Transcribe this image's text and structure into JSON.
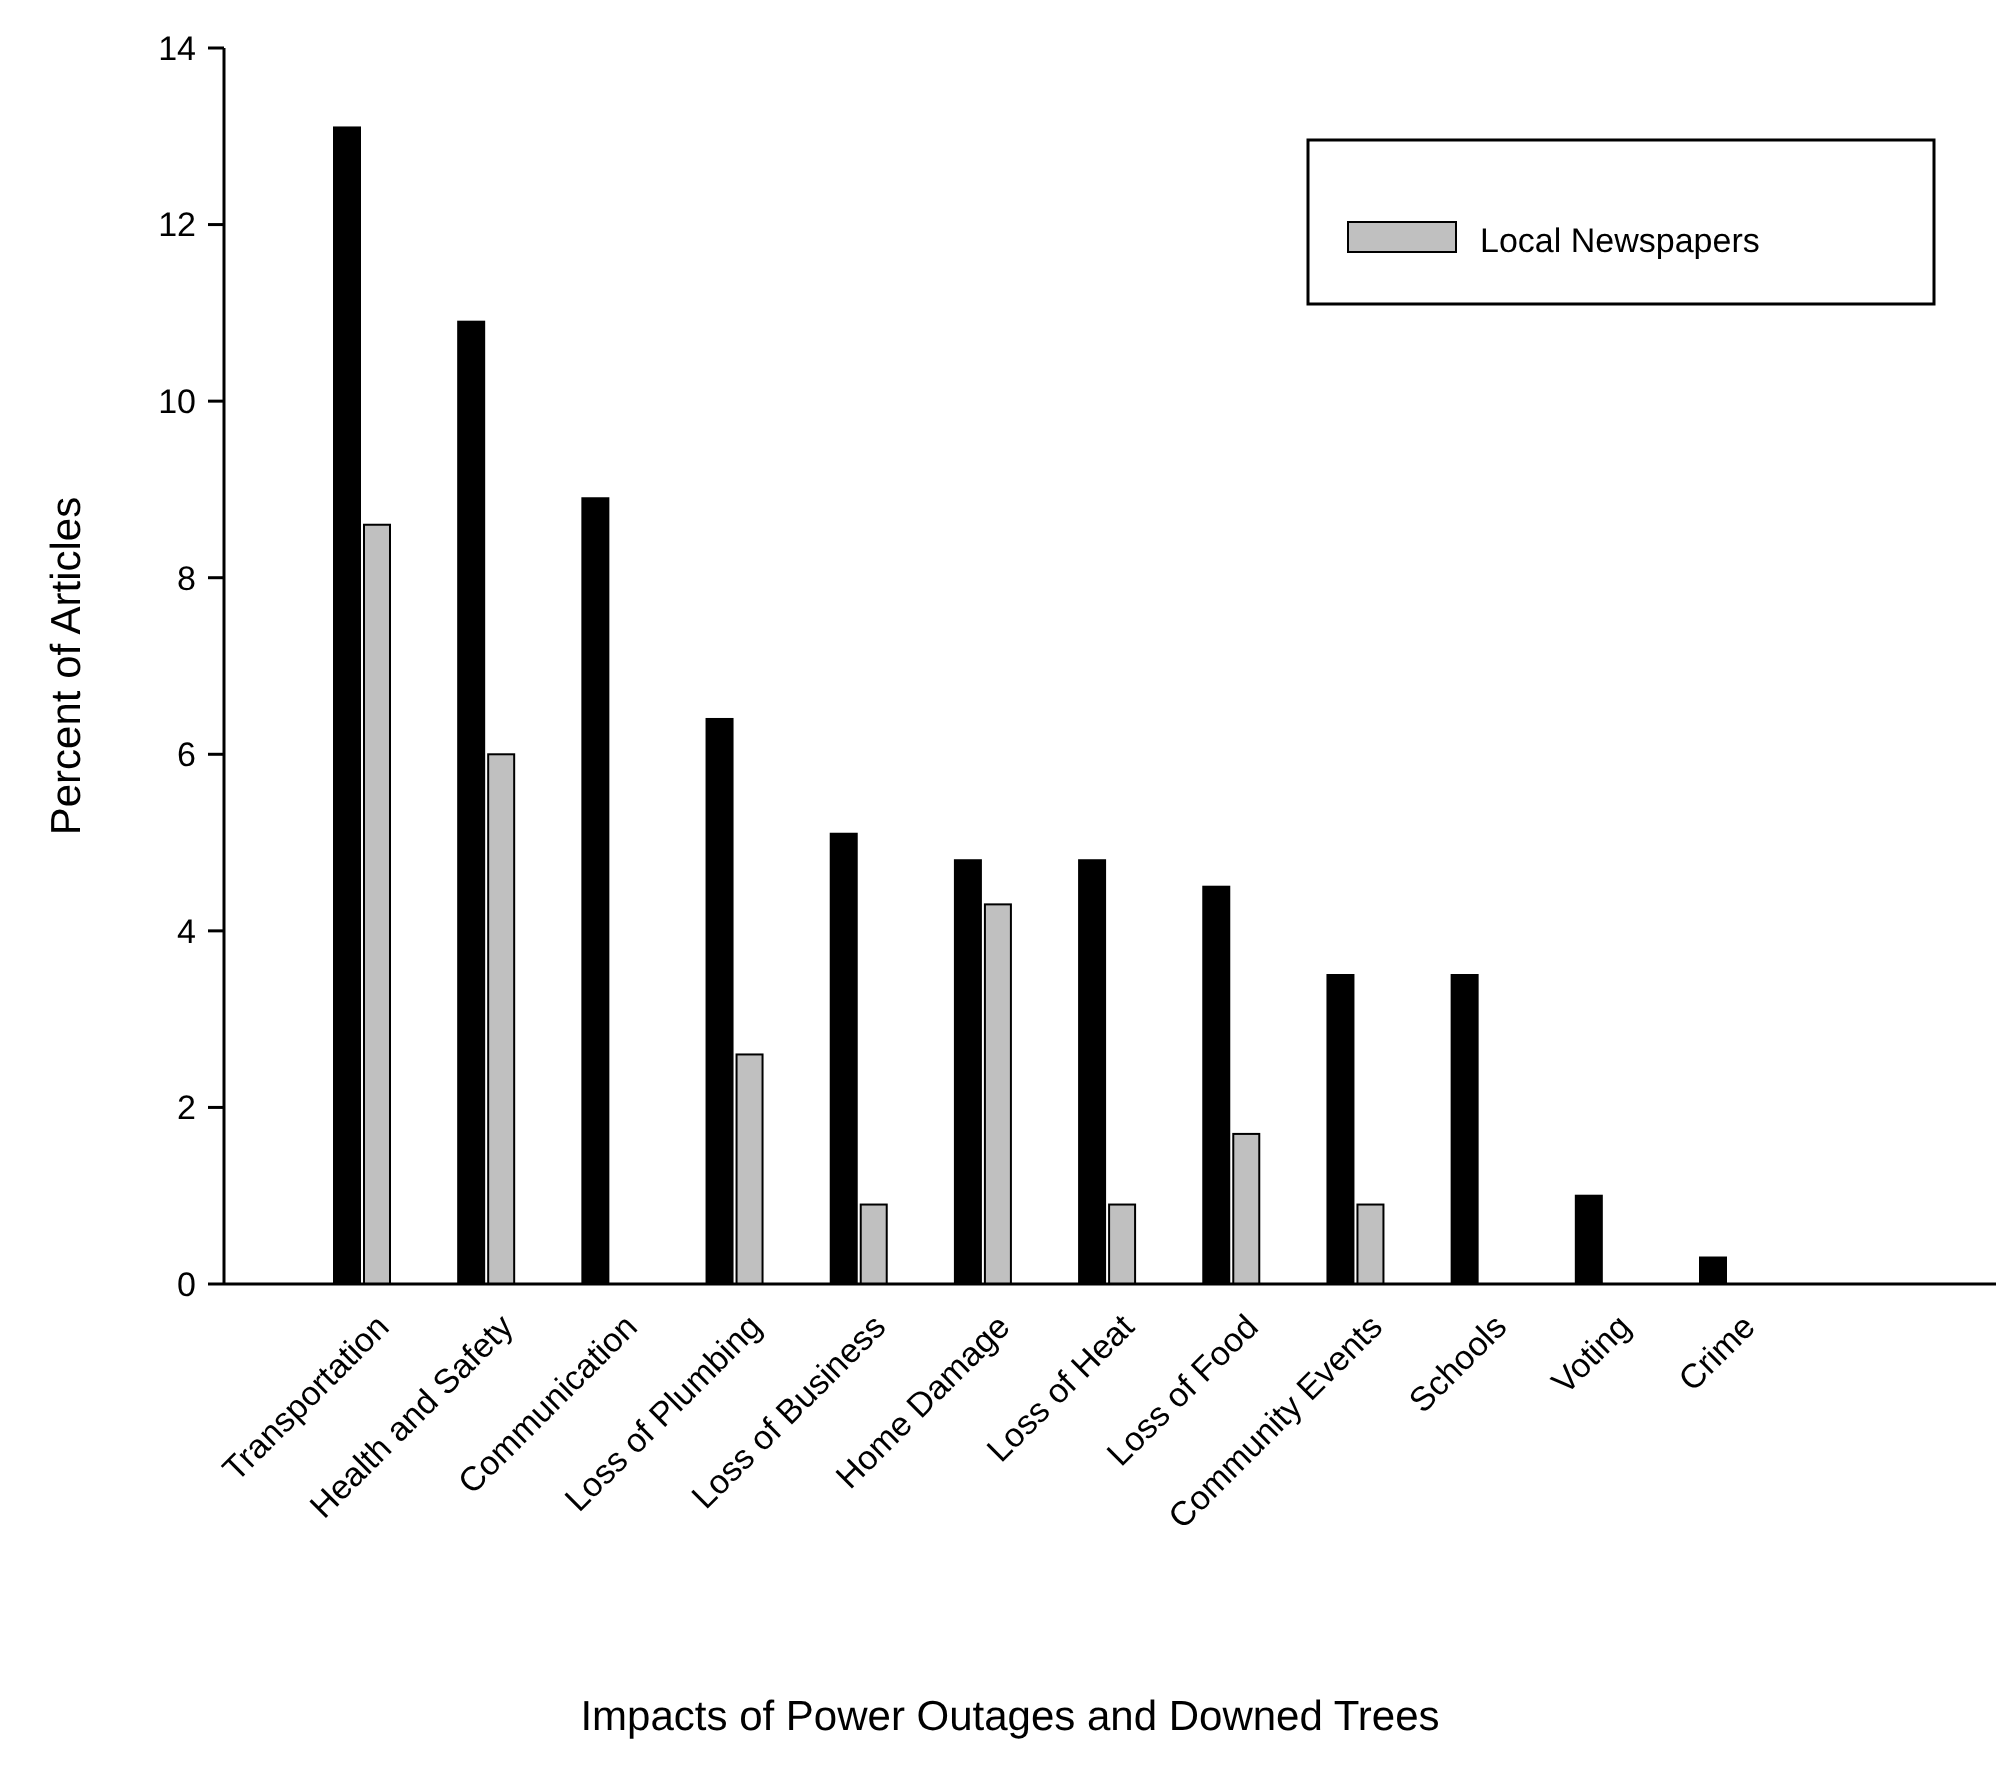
{
  "chart_data": {
    "type": "bar",
    "xlabel": "Impacts of Power Outages and Downed Trees",
    "ylabel": "Percent of Articles",
    "categories": [
      "Transportation",
      "Health and Safety",
      "Communication",
      "Loss of Plumbing",
      "Loss of Business",
      "Home Damage",
      "Loss of Heat",
      "Loss of Food",
      "Community Events",
      "Schools",
      "Voting",
      "Crime"
    ],
    "series": [
      {
        "color": "#000000",
        "values": [
          13.1,
          10.9,
          8.9,
          6.4,
          5.1,
          4.8,
          4.8,
          4.5,
          3.5,
          3.5,
          1.0,
          0.3
        ]
      },
      {
        "name": "Local Newspapers",
        "color": "#c0c0c0",
        "values": [
          8.6,
          6.0,
          null,
          2.6,
          0.9,
          4.3,
          0.9,
          1.7,
          0.9,
          null,
          null,
          null
        ]
      }
    ],
    "ylim": [
      0,
      14
    ],
    "yticks": [
      0,
      2,
      4,
      6,
      8,
      10,
      12,
      14
    ],
    "grid": false,
    "legend": "top right"
  }
}
